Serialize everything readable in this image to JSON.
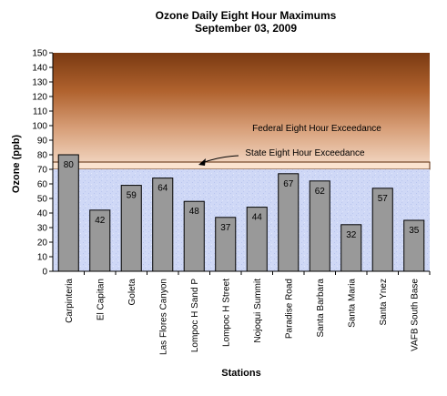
{
  "chart_data": {
    "type": "bar",
    "title": "Ozone Daily Eight Hour Maximums",
    "subtitle": "September 03, 2009",
    "xlabel": "Stations",
    "ylabel": "Ozone (ppb)",
    "ylim": [
      0,
      150
    ],
    "ytick_step": 10,
    "categories": [
      "Carpinteria",
      "El Capitan",
      "Goleta",
      "Las Flores Canyon",
      "Lompoc H Sand P",
      "Lompoc H Street",
      "Nojoqui Summit",
      "Paradise Road",
      "Santa Barbara",
      "Santa Maria",
      "Santa Ynez",
      "VAFB South Base"
    ],
    "values": [
      80,
      42,
      59,
      64,
      48,
      37,
      44,
      67,
      62,
      32,
      57,
      35
    ],
    "bar_color": "#999999",
    "thresholds": [
      {
        "label": "Federal Eight Hour Exceedance",
        "value": 75
      },
      {
        "label": "State Eight Hour Exceedance",
        "value": 70
      }
    ]
  }
}
